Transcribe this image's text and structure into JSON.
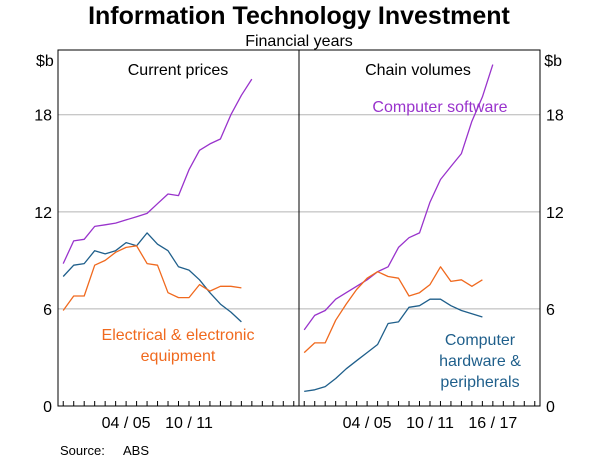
{
  "chart_data": {
    "type": "line",
    "title": "Information Technology Investment",
    "subtitle": "Financial years",
    "y_unit_left": "$b",
    "y_unit_right": "$b",
    "ylim": [
      0,
      22
    ],
    "yticks": [
      "0",
      "6",
      "12",
      "18"
    ],
    "ytick_values": [
      0,
      6,
      12,
      18
    ],
    "grid": true,
    "source_label": "Source:",
    "source_value": "ABS",
    "panels": [
      {
        "title": "Current prices",
        "xlim": [
          -0.5,
          22.5
        ],
        "xtick_labels": [
          "04 / 05",
          "10 / 11"
        ],
        "xtick_positions": [
          6,
          12
        ],
        "series": [
          {
            "name": "Computer software",
            "color": "#9933cc",
            "values": [
              8.8,
              10.2,
              10.3,
              11.1,
              11.2,
              11.3,
              11.5,
              11.7,
              11.9,
              12.5,
              13.1,
              13.0,
              14.6,
              15.8,
              16.2,
              16.5,
              18.0,
              19.2,
              20.2
            ]
          },
          {
            "name": "Computer hardware & peripherals",
            "color": "#1f5f8b",
            "values": [
              8.0,
              8.7,
              8.8,
              9.6,
              9.4,
              9.6,
              10.1,
              9.9,
              10.7,
              10.0,
              9.6,
              8.6,
              8.4,
              7.8,
              7.0,
              6.3,
              5.8,
              5.2
            ]
          },
          {
            "name": "Electrical & electronic equipment",
            "color": "#f0691e",
            "values": [
              5.9,
              6.8,
              6.8,
              8.7,
              9.0,
              9.5,
              9.8,
              9.9,
              8.8,
              8.7,
              7.0,
              6.7,
              6.7,
              7.5,
              7.1,
              7.4,
              7.4,
              7.3
            ]
          }
        ]
      },
      {
        "title": "Chain volumes",
        "xlim": [
          -0.5,
          22.5
        ],
        "xtick_labels": [
          "04 / 05",
          "10 / 11",
          "16 / 17"
        ],
        "xtick_positions": [
          6,
          12,
          18
        ],
        "series": [
          {
            "name": "Computer software",
            "color": "#9933cc",
            "values": [
              4.7,
              5.6,
              5.9,
              6.6,
              7.0,
              7.4,
              7.8,
              8.3,
              8.6,
              9.8,
              10.4,
              10.7,
              12.6,
              14.0,
              14.8,
              15.6,
              17.6,
              19.1,
              21.1
            ]
          },
          {
            "name": "Electrical & electronic equipment",
            "color": "#f0691e",
            "values": [
              3.3,
              3.9,
              3.9,
              5.3,
              6.3,
              7.2,
              7.9,
              8.3,
              8.0,
              7.9,
              6.8,
              7.0,
              7.5,
              8.6,
              7.7,
              7.8,
              7.4,
              7.8
            ]
          },
          {
            "name": "Computer hardware & peripherals",
            "color": "#1f5f8b",
            "values": [
              0.9,
              1.0,
              1.2,
              1.7,
              2.3,
              2.8,
              3.3,
              3.8,
              5.1,
              5.2,
              6.1,
              6.2,
              6.6,
              6.6,
              6.2,
              5.9,
              5.7,
              5.5
            ]
          }
        ]
      }
    ],
    "annotations": [
      {
        "panel": 0,
        "lines": [
          "Electrical & electronic",
          "equipment"
        ],
        "color": "#f0691e"
      },
      {
        "panel": 1,
        "lines": [
          "Computer software"
        ],
        "color": "#9933cc"
      },
      {
        "panel": 1,
        "lines": [
          "Computer",
          "hardware &",
          "peripherals"
        ],
        "color": "#1f5f8b"
      }
    ]
  }
}
